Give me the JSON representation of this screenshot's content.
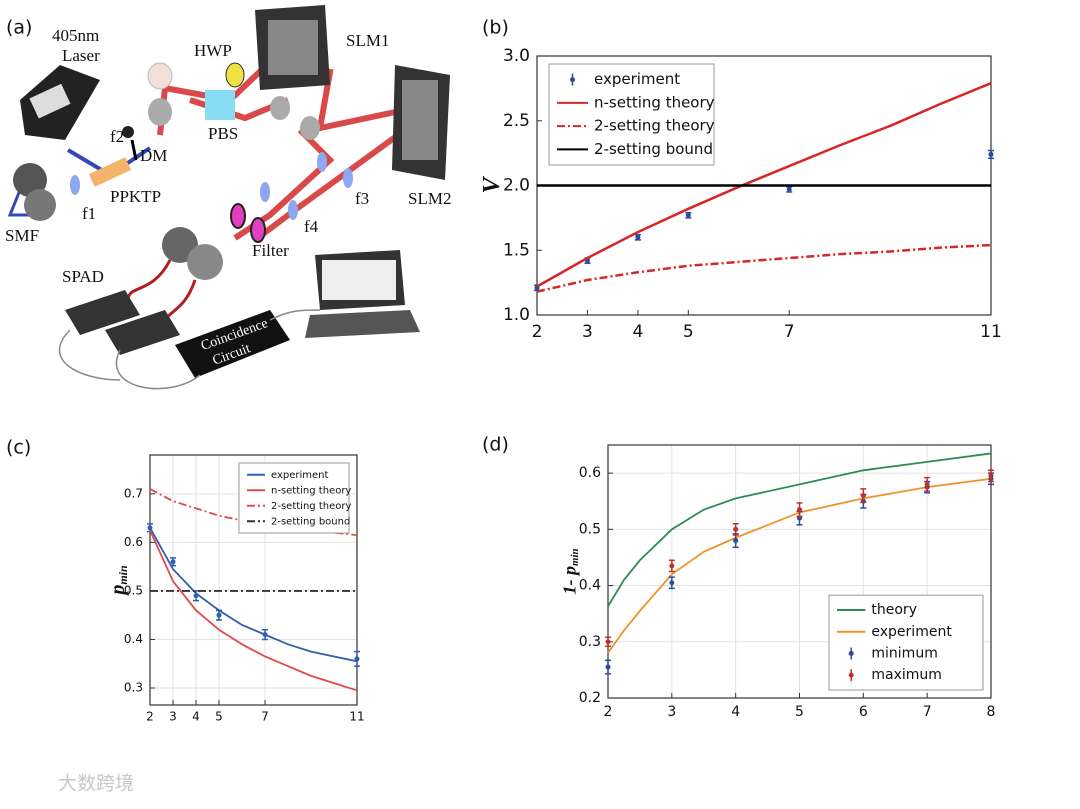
{
  "panel_labels": [
    "(a)",
    "(b)",
    "(c)",
    "(d)"
  ],
  "diagram": {
    "labels": [
      "405nm",
      "Laser",
      "HWP",
      "SLM1",
      "PBS",
      "f2",
      "DM",
      "PPKTP",
      "f1",
      "SMF",
      "SLM2",
      "f3",
      "f4",
      "Filter",
      "SPAD",
      "Coincidence",
      "Circuit"
    ]
  },
  "watermark": "大数跨境",
  "chart_data": [
    {
      "type": "line",
      "y_label": "V",
      "xlim": [
        2,
        11
      ],
      "xticks": [
        2,
        3,
        4,
        5,
        7,
        11
      ],
      "ylim": [
        1,
        3
      ],
      "yticks": [
        {
          "value": 1,
          "label": "1.0"
        },
        1.5,
        {
          "value": 2,
          "label": "2.0"
        },
        2.5,
        {
          "value": 3,
          "label": "3.0"
        }
      ],
      "grid": false,
      "legend": "upper-left",
      "series": [
        {
          "name": "experiment",
          "style": "markers",
          "color": "#2b4c9b",
          "x": [
            2,
            3,
            4,
            5,
            7,
            11
          ],
          "values": [
            1.21,
            1.42,
            1.6,
            1.77,
            1.97,
            2.24
          ],
          "errors": [
            0.02,
            0.02,
            0.02,
            0.02,
            0.02,
            0.03
          ]
        },
        {
          "name": "n-setting theory",
          "style": "solid",
          "color": "#d62728",
          "x": [
            2,
            3,
            4,
            5,
            6,
            7,
            8,
            9,
            10,
            11
          ],
          "values": [
            1.22,
            1.44,
            1.64,
            1.82,
            1.99,
            2.15,
            2.31,
            2.46,
            2.63,
            2.79
          ]
        },
        {
          "name": "2-setting theory",
          "style": "dashdot",
          "color": "#d62728",
          "x": [
            2,
            3,
            4,
            5,
            6,
            7,
            8,
            9,
            10,
            11
          ],
          "values": [
            1.18,
            1.27,
            1.33,
            1.38,
            1.41,
            1.44,
            1.47,
            1.49,
            1.52,
            1.54
          ]
        },
        {
          "name": "2-setting bound",
          "style": "solid",
          "color": "#000000",
          "x": [
            2,
            11
          ],
          "values": [
            2,
            2
          ]
        }
      ]
    },
    {
      "type": "line",
      "y_label": "p",
      "y_label_sub": "min",
      "xlim": [
        2,
        11
      ],
      "xticks": [
        2,
        3,
        4,
        5,
        7,
        11
      ],
      "ylim": [
        0.265,
        0.78
      ],
      "yticks": [
        0.3,
        0.4,
        0.5,
        0.6,
        0.7
      ],
      "grid": true,
      "legend": "upper-right",
      "series": [
        {
          "name": "experiment",
          "style": "solid",
          "color": "#2f5fb0",
          "x": [
            2,
            3,
            4,
            5,
            6,
            7,
            8,
            9,
            10,
            11
          ],
          "values": [
            0.63,
            0.545,
            0.495,
            0.46,
            0.43,
            0.41,
            0.39,
            0.375,
            0.365,
            0.355
          ]
        },
        {
          "style": "markers",
          "color": "#2f5fb0",
          "x": [
            2,
            3,
            4,
            5,
            7,
            11
          ],
          "values": [
            0.63,
            0.56,
            0.49,
            0.45,
            0.41,
            0.36
          ],
          "errors": [
            0.008,
            0.008,
            0.01,
            0.01,
            0.01,
            0.015
          ]
        },
        {
          "name": "n-setting theory",
          "style": "solid",
          "color": "#e04a4a",
          "x": [
            2,
            3,
            4,
            5,
            6,
            7,
            8,
            9,
            10,
            11
          ],
          "values": [
            0.625,
            0.52,
            0.46,
            0.42,
            0.39,
            0.365,
            0.345,
            0.325,
            0.31,
            0.295
          ]
        },
        {
          "name": "2-setting theory",
          "style": "dashdot",
          "color": "#e04a4a",
          "x": [
            2,
            3,
            4,
            5,
            6,
            7,
            8,
            9,
            10,
            11
          ],
          "values": [
            0.71,
            0.685,
            0.67,
            0.655,
            0.645,
            0.64,
            0.63,
            0.625,
            0.62,
            0.615
          ]
        },
        {
          "name": "2-setting bound",
          "style": "dashdot",
          "color": "#333333",
          "x": [
            2,
            11
          ],
          "values": [
            0.5,
            0.5
          ]
        }
      ]
    },
    {
      "type": "line",
      "y_label": "1- p",
      "y_label_sub": "min",
      "xlim": [
        2,
        8
      ],
      "xticks": [
        2,
        3,
        4,
        5,
        6,
        7,
        8
      ],
      "ylim": [
        0.2,
        0.65
      ],
      "yticks": [
        0.2,
        0.3,
        0.4,
        0.5,
        0.6
      ],
      "grid": true,
      "legend": "lower-right",
      "series": [
        {
          "name": "theory",
          "style": "solid",
          "color": "#2e8b57",
          "x": [
            2,
            2.25,
            2.5,
            3,
            3.5,
            4,
            5,
            6,
            7,
            8
          ],
          "values": [
            0.363,
            0.41,
            0.445,
            0.5,
            0.535,
            0.555,
            0.58,
            0.605,
            0.62,
            0.635
          ]
        },
        {
          "name": "experiment",
          "style": "solid",
          "color": "#f0922b",
          "x": [
            2,
            2.25,
            2.5,
            3,
            3.5,
            4,
            5,
            6,
            7,
            8
          ],
          "values": [
            0.28,
            0.32,
            0.355,
            0.42,
            0.46,
            0.485,
            0.53,
            0.555,
            0.575,
            0.59
          ]
        },
        {
          "name": "minimum",
          "style": "markers",
          "color": "#2b4c9b",
          "x": [
            2,
            3,
            4,
            5,
            6,
            7,
            8
          ],
          "values": [
            0.255,
            0.405,
            0.48,
            0.52,
            0.55,
            0.575,
            0.59
          ],
          "errors": [
            0.012,
            0.01,
            0.012,
            0.012,
            0.012,
            0.01,
            0.01
          ]
        },
        {
          "name": "maximum",
          "style": "markers",
          "color": "#c0302b",
          "x": [
            2,
            3,
            4,
            5,
            6,
            7,
            8
          ],
          "values": [
            0.3,
            0.435,
            0.5,
            0.535,
            0.56,
            0.58,
            0.595
          ],
          "errors": [
            0.008,
            0.01,
            0.01,
            0.012,
            0.012,
            0.012,
            0.01
          ]
        }
      ]
    }
  ]
}
